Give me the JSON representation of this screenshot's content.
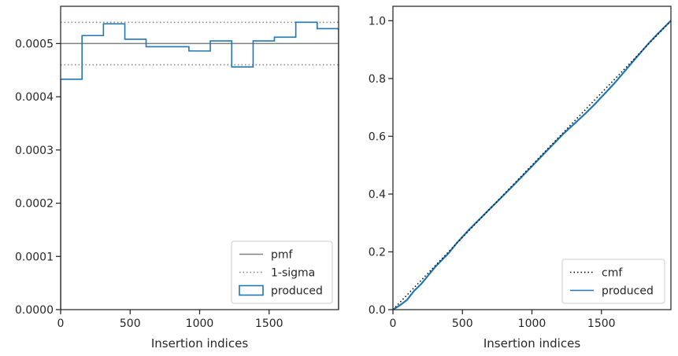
{
  "chart_data": [
    {
      "type": "step",
      "xlabel": "Insertion indices",
      "ylabel": "",
      "xlim": [
        0,
        2000
      ],
      "ylim": [
        0,
        0.00057
      ],
      "xticks": [
        0,
        500,
        1000,
        1500
      ],
      "yticks": [
        0,
        0.0001,
        0.0002,
        0.0003,
        0.0004,
        0.0005
      ],
      "ytick_labels": [
        "0.0000",
        "0.0001",
        "0.0002",
        "0.0003",
        "0.0004",
        "0.0005"
      ],
      "grid": false,
      "legend_position": "lower-right",
      "pmf": 0.0005,
      "sigma_band": [
        0.00046,
        0.00054
      ],
      "bin_edges": [
        0,
        154,
        308,
        462,
        615,
        769,
        923,
        1077,
        1231,
        1385,
        1538,
        1692,
        1846,
        2000
      ],
      "produced": [
        0.000433,
        0.000515,
        0.000537,
        0.000508,
        0.000494,
        0.000494,
        0.000486,
        0.000505,
        0.000456,
        0.000505,
        0.000512,
        0.00054,
        0.000528
      ],
      "series": [
        {
          "name": "pmf",
          "color": "#808080",
          "style": "solid"
        },
        {
          "name": "1-sigma",
          "color": "#808080",
          "style": "dotted"
        },
        {
          "name": "produced",
          "color": "#1f77b4",
          "style": "step"
        }
      ]
    },
    {
      "type": "line",
      "xlabel": "Insertion indices",
      "ylabel": "",
      "xlim": [
        0,
        2000
      ],
      "ylim": [
        0,
        1.05
      ],
      "xticks": [
        0,
        500,
        1000,
        1500
      ],
      "yticks": [
        0,
        0.2,
        0.4,
        0.6,
        0.8,
        1.0
      ],
      "ytick_labels": [
        "0.0",
        "0.2",
        "0.4",
        "0.6",
        "0.8",
        "1.0"
      ],
      "grid": false,
      "legend_position": "lower-right",
      "cmf": {
        "x": [
          0,
          2000
        ],
        "y": [
          0,
          1.0
        ]
      },
      "produced": {
        "x": [
          0,
          50,
          100,
          154,
          200,
          308,
          400,
          462,
          550,
          615,
          700,
          769,
          850,
          923,
          1000,
          1077,
          1150,
          1231,
          1300,
          1385,
          1450,
          1538,
          1600,
          1692,
          1750,
          1846,
          1900,
          2000
        ],
        "y": [
          0,
          0.015,
          0.033,
          0.066,
          0.087,
          0.15,
          0.195,
          0.232,
          0.278,
          0.309,
          0.35,
          0.383,
          0.422,
          0.458,
          0.496,
          0.535,
          0.571,
          0.611,
          0.641,
          0.679,
          0.71,
          0.755,
          0.787,
          0.839,
          0.872,
          0.925,
          0.952,
          1.0
        ]
      },
      "series": [
        {
          "name": "cmf",
          "color": "#000000",
          "style": "dotted"
        },
        {
          "name": "produced",
          "color": "#1f77b4",
          "style": "line"
        }
      ]
    }
  ]
}
